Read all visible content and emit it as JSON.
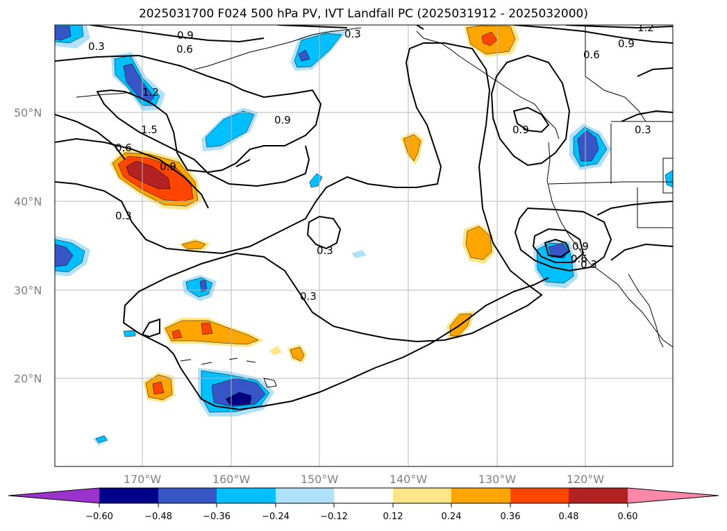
{
  "title": "2025031700 F024 500 hPa PV, IVT Landfall PC (2025031912 - 2025032000)",
  "map": {
    "lat_labels": [
      "50°N",
      "40°N",
      "30°N",
      "20°N"
    ],
    "lon_labels": [
      "170°W",
      "160°W",
      "150°W",
      "140°W",
      "130°W",
      "120°W"
    ],
    "contour_labels": [
      "0.3",
      "0.9",
      "0.6",
      "0.3",
      "1.2",
      "0.9",
      "0.6",
      "1.2",
      "1.5",
      "0.9",
      "0.6",
      "0.9",
      "0.9",
      "0.3",
      "0.3",
      "0.3",
      "0.3",
      "0.9",
      "0.6",
      "0.3"
    ],
    "colors": {
      "neg_strong": "#000080",
      "neg_mid": "#3656c8",
      "neg_light": "#00bfff",
      "neg_pale": "#afe1fa",
      "pos_pale": "#fde68a",
      "pos_light": "#ffa500",
      "pos_mid": "#ff4500",
      "pos_strong": "#b22222"
    }
  },
  "colorbar": {
    "ticks": [
      "−0.60",
      "−0.48",
      "−0.36",
      "−0.24",
      "−0.12",
      "0.12",
      "0.24",
      "0.36",
      "0.48",
      "0.60"
    ],
    "colors": [
      "#9933cc",
      "#00008b",
      "#3656c8",
      "#00bfff",
      "#afe1fa",
      "#ffffff",
      "#fde68a",
      "#ffa500",
      "#ff4500",
      "#b22222",
      "#ff88aa"
    ]
  }
}
